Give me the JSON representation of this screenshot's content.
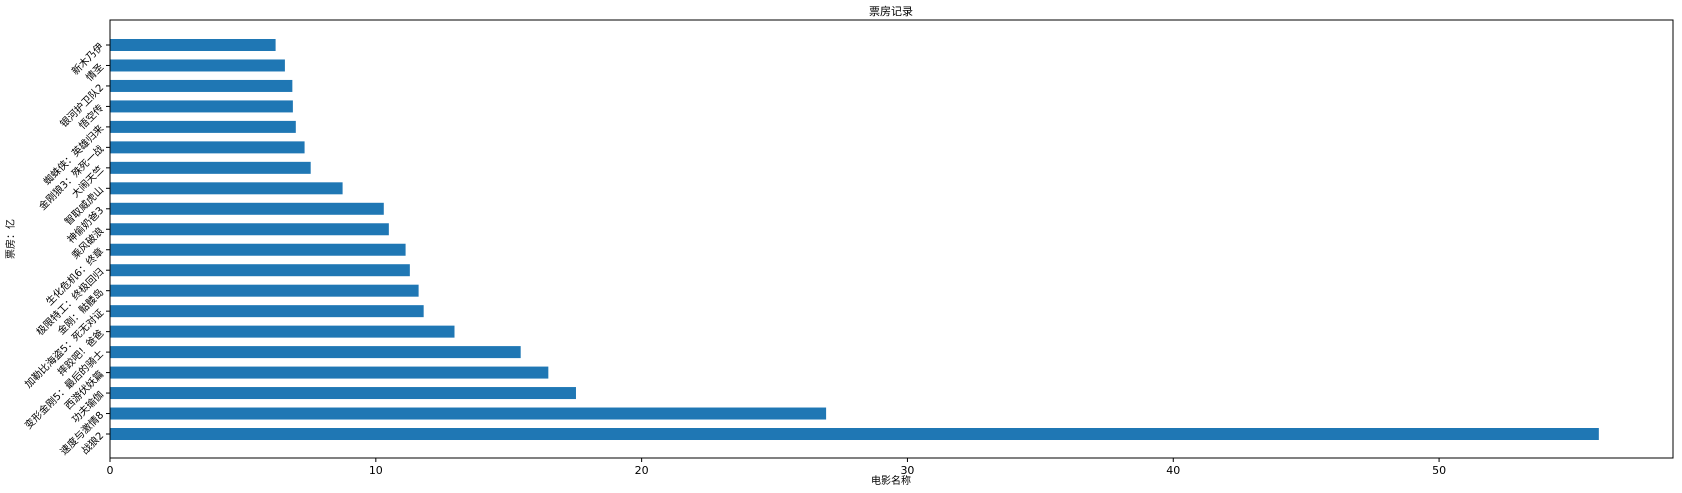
{
  "chart_data": {
    "type": "bar",
    "orientation": "horizontal",
    "title": "票房记录",
    "xlabel": "电影名称",
    "ylabel": "票房：亿",
    "xlim": [
      0,
      58.8
    ],
    "xticks": [
      0,
      10,
      20,
      30,
      40,
      50
    ],
    "grid": false,
    "bar_color": "#1f77b4",
    "categories": [
      "战狼2",
      "速度与激情8",
      "功夫瑜伽",
      "西游伏妖篇",
      "变形金刚5：最后的骑士",
      "摔跤吧！爸爸",
      "加勒比海盗5：死无对证",
      "金刚：骷髅岛",
      "极限特工：终极回归",
      "生化危机6：终章",
      "乘风破浪",
      "神偷奶爸3",
      "智取威虎山",
      "大闹天竺",
      "金刚狼3：殊死一战",
      "蜘蛛侠：英雄归来",
      "悟空传",
      "银河护卫队2",
      "情圣",
      "新木乃伊"
    ],
    "values": [
      56.01,
      26.94,
      17.53,
      16.49,
      15.45,
      12.96,
      11.8,
      11.61,
      11.28,
      11.12,
      10.49,
      10.3,
      8.75,
      7.55,
      7.32,
      6.99,
      6.88,
      6.86,
      6.58,
      6.23
    ]
  }
}
